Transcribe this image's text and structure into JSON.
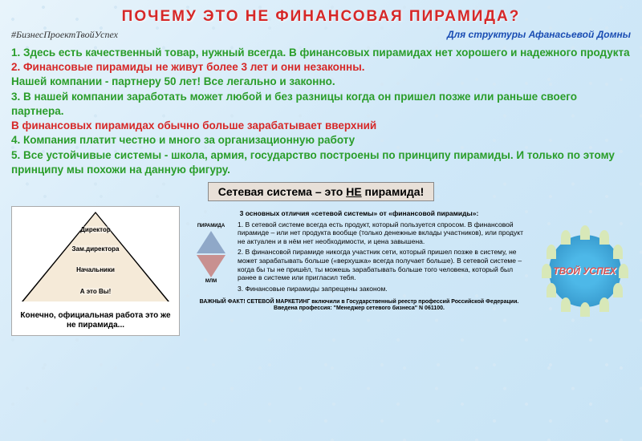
{
  "colors": {
    "title": "#d62828",
    "subtitle": "#1a4db3",
    "hashtag": "#333333",
    "points_green": "#2a9d2a",
    "points_red": "#d62828",
    "box_underline": "#000000"
  },
  "title": "ПОЧЕМУ ЭТО НЕ ФИНАНСОВАЯ ПИРАМИДА?",
  "hashtag": "#БизнесПроектТвойУспех",
  "subtitle": "Для структуры Афанасьевой Домны",
  "points": [
    {
      "color": "green",
      "text": "1. Здесь есть качественный товар, нужный всегда. В финансовых пирамидах нет хорошего и надежного продукта"
    },
    {
      "color": "red",
      "text": "2. Финансовые пирамиды не живут более 3 лет и они незаконны."
    },
    {
      "color": "green",
      "text": "Нашей компании - партнеру 50 лет! Все легально и законно."
    },
    {
      "color": "green",
      "text": "3. В нашей компании заработать может любой и без разницы когда он пришел позже или раньше своего партнера."
    },
    {
      "color": "red",
      "text": "В финансовых пирамидах обычно больше зарабатывает вверхний"
    },
    {
      "color": "green",
      "text": "4. Компания платит честно и много за организационную работу"
    },
    {
      "color": "green",
      "text": "5. Все устойчивые системы - школа, армия, государство построены по принципу пирамиды. И только по этому принципу мы похожи на данную фигуру."
    }
  ],
  "box_label_pre": "Сетевая система – это ",
  "box_label_underline": "НЕ",
  "box_label_post": " пирамида!",
  "pyramid": {
    "levels": [
      "Директор",
      "Зам.директора",
      "Начальники",
      "А это Вы!"
    ],
    "caption": "Конечно, официальная работа это же не пирамида..."
  },
  "differences": {
    "heading": "3 основных отличия «сетевой системы» от «финансовой пирамиды»:",
    "top_label": "ПИРАМИДА",
    "bottom_label": "МЛМ",
    "items": [
      "В сетевой системе всегда есть продукт, который пользуется спросом. В финансовой пирамиде – или нет продукта вообще (только денежные вклады участников), или продукт не актуален и в нём нет необходимости, и цена завышена.",
      "В финансовой пирамиде никогда участник сети, который пришел позже в систему, не может зарабатывать больше («верхушка» всегда получает больше). В сетевой системе – когда бы ты не пришёл, ты можешь зарабатывать больше того человека, который был ранее в системе или пригласил тебя.",
      "Финансовые пирамиды запрещены законом."
    ],
    "fact": "ВАЖНЫЙ ФАКТ! СЕТЕВОЙ МАРКЕТИНГ включили в Государственный реестр профессий Российской Федерации. Введена профессия: \"Менеджер сетевого бизнеса\" N 061100."
  },
  "logo_text": "ТВОЙ УСПЕХ"
}
